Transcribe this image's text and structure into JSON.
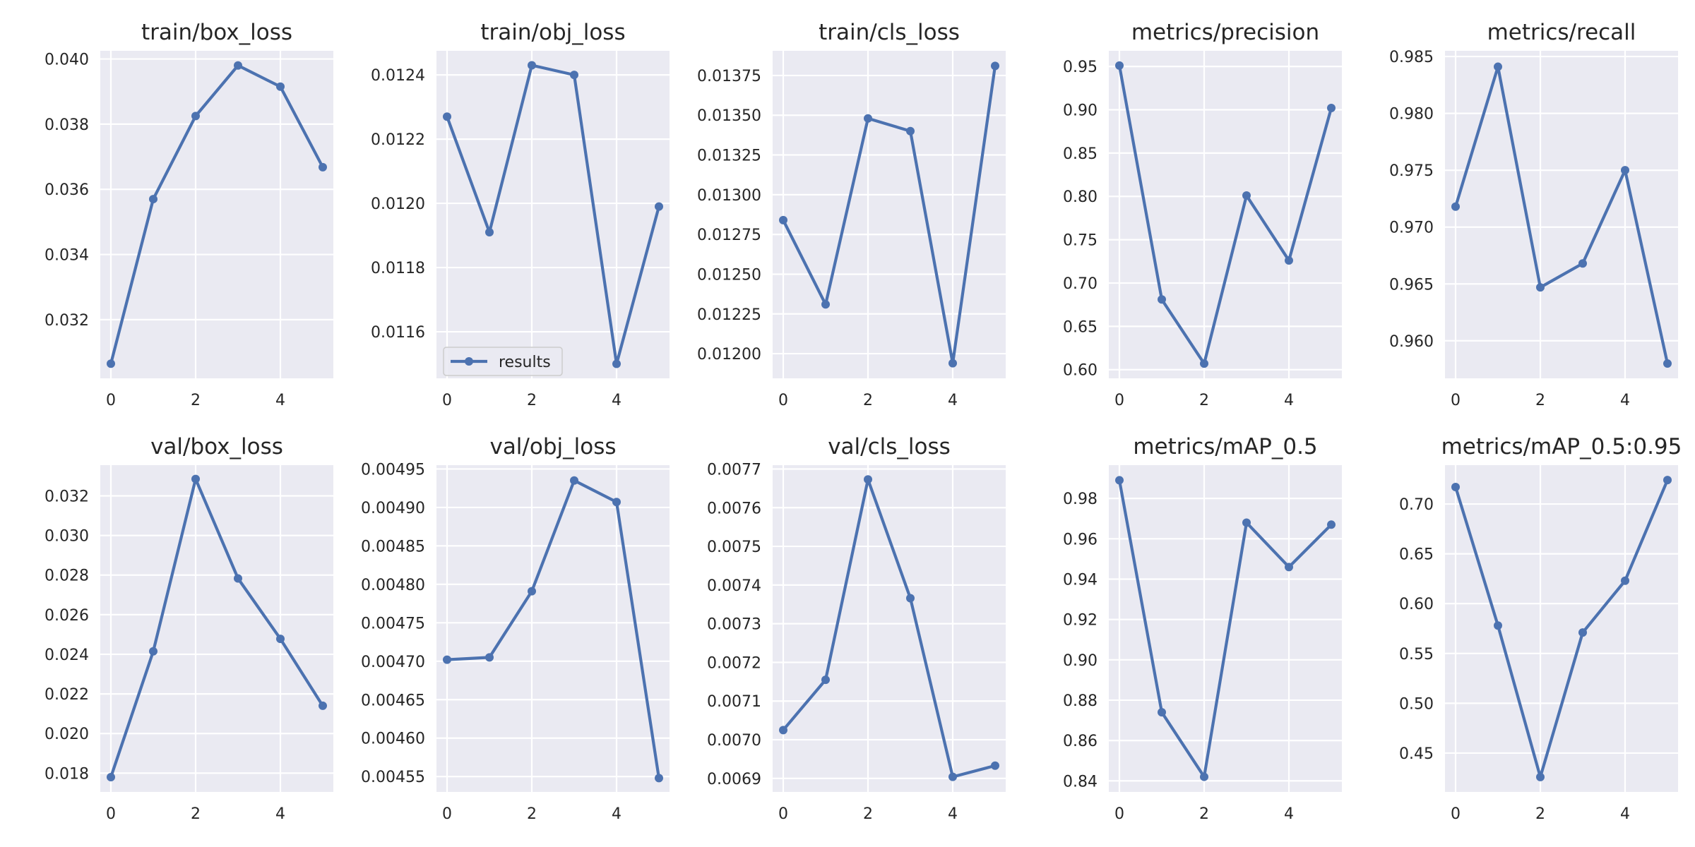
{
  "figure": {
    "background": "#ffffff",
    "plot_background": "#eaeaf2",
    "grid_color": "#ffffff",
    "line_color": "#4c72b0",
    "text_color": "#262626",
    "legend": {
      "label": "results",
      "panel": 1,
      "placement": "lower-left"
    }
  },
  "chart_data": [
    {
      "type": "line",
      "title": "train/box_loss",
      "grid": true,
      "x": [
        0,
        1,
        2,
        3,
        4,
        5
      ],
      "series": [
        {
          "values": [
            0.03065,
            0.0357,
            0.03825,
            0.0398,
            0.03915,
            0.03668
          ]
        }
      ],
      "xticks": [
        0,
        2,
        4
      ],
      "yticks": [
        0.032,
        0.034,
        0.036,
        0.038,
        0.04
      ],
      "ytick_labels": [
        "0.032",
        "0.034",
        "0.036",
        "0.038",
        "0.040"
      ],
      "xlim": [
        -0.25,
        5.25
      ],
      "ylim": [
        0.0302,
        0.04025
      ]
    },
    {
      "type": "line",
      "title": "train/obj_loss",
      "grid": true,
      "x": [
        0,
        1,
        2,
        3,
        4,
        5
      ],
      "series": [
        {
          "values": [
            0.01227,
            0.01191,
            0.01243,
            0.0124,
            0.0115,
            0.01199
          ]
        }
      ],
      "xticks": [
        0,
        2,
        4
      ],
      "yticks": [
        0.0116,
        0.0118,
        0.012,
        0.0122,
        0.0124
      ],
      "ytick_labels": [
        "0.0116",
        "0.0118",
        "0.0120",
        "0.0122",
        "0.0124"
      ],
      "xlim": [
        -0.25,
        5.25
      ],
      "ylim": [
        0.011455,
        0.012475
      ]
    },
    {
      "type": "line",
      "title": "train/cls_loss",
      "grid": true,
      "x": [
        0,
        1,
        2,
        3,
        4,
        5
      ],
      "series": [
        {
          "values": [
            0.01284,
            0.01231,
            0.01348,
            0.0134,
            0.01194,
            0.01381
          ]
        }
      ],
      "xticks": [
        0,
        2,
        4
      ],
      "yticks": [
        0.012,
        0.01225,
        0.0125,
        0.01275,
        0.013,
        0.01325,
        0.0135,
        0.01375
      ],
      "ytick_labels": [
        "0.01200",
        "0.01225",
        "0.01250",
        "0.01275",
        "0.01300",
        "0.01325",
        "0.01350",
        "0.01375"
      ],
      "xlim": [
        -0.25,
        5.25
      ],
      "ylim": [
        0.011845,
        0.013905
      ]
    },
    {
      "type": "line",
      "title": "metrics/precision",
      "grid": true,
      "x": [
        0,
        1,
        2,
        3,
        4,
        5
      ],
      "series": [
        {
          "values": [
            0.951,
            0.681,
            0.607,
            0.801,
            0.726,
            0.902
          ]
        }
      ],
      "xticks": [
        0,
        2,
        4
      ],
      "yticks": [
        0.6,
        0.65,
        0.7,
        0.75,
        0.8,
        0.85,
        0.9,
        0.95
      ],
      "ytick_labels": [
        "0.60",
        "0.65",
        "0.70",
        "0.75",
        "0.80",
        "0.85",
        "0.90",
        "0.95"
      ],
      "xlim": [
        -0.25,
        5.25
      ],
      "ylim": [
        0.59,
        0.968
      ]
    },
    {
      "type": "line",
      "title": "metrics/recall",
      "grid": true,
      "x": [
        0,
        1,
        2,
        3,
        4,
        5
      ],
      "series": [
        {
          "values": [
            0.9718,
            0.9841,
            0.9647,
            0.9668,
            0.975,
            0.958
          ]
        }
      ],
      "xticks": [
        0,
        2,
        4
      ],
      "yticks": [
        0.96,
        0.965,
        0.97,
        0.975,
        0.98,
        0.985
      ],
      "ytick_labels": [
        "0.960",
        "0.965",
        "0.970",
        "0.975",
        "0.980",
        "0.985"
      ],
      "xlim": [
        -0.25,
        5.25
      ],
      "ylim": [
        0.9567,
        0.9855
      ]
    },
    {
      "type": "line",
      "title": "val/box_loss",
      "grid": true,
      "x": [
        0,
        1,
        2,
        3,
        4,
        5
      ],
      "series": [
        {
          "values": [
            0.0178,
            0.02415,
            0.03285,
            0.02783,
            0.02478,
            0.0214
          ]
        }
      ],
      "xticks": [
        0,
        2,
        4
      ],
      "yticks": [
        0.018,
        0.02,
        0.022,
        0.024,
        0.026,
        0.028,
        0.03,
        0.032
      ],
      "ytick_labels": [
        "0.018",
        "0.020",
        "0.022",
        "0.024",
        "0.026",
        "0.028",
        "0.030",
        "0.032"
      ],
      "xlim": [
        -0.25,
        5.25
      ],
      "ylim": [
        0.01705,
        0.03355
      ]
    },
    {
      "type": "line",
      "title": "val/obj_loss",
      "grid": true,
      "x": [
        0,
        1,
        2,
        3,
        4,
        5
      ],
      "series": [
        {
          "values": [
            0.004702,
            0.004705,
            0.004791,
            0.004935,
            0.004907,
            0.004548
          ]
        }
      ],
      "xticks": [
        0,
        2,
        4
      ],
      "yticks": [
        0.00455,
        0.0046,
        0.00465,
        0.0047,
        0.00475,
        0.0048,
        0.00485,
        0.0049,
        0.00495
      ],
      "ytick_labels": [
        "0.00455",
        "0.00460",
        "0.00465",
        "0.00470",
        "0.00475",
        "0.00480",
        "0.00485",
        "0.00490",
        "0.00495"
      ],
      "xlim": [
        -0.25,
        5.25
      ],
      "ylim": [
        0.00453,
        0.004955
      ]
    },
    {
      "type": "line",
      "title": "val/cls_loss",
      "grid": true,
      "x": [
        0,
        1,
        2,
        3,
        4,
        5
      ],
      "series": [
        {
          "values": [
            0.007025,
            0.007155,
            0.007673,
            0.007366,
            0.006904,
            0.006933
          ]
        }
      ],
      "xticks": [
        0,
        2,
        4
      ],
      "yticks": [
        0.0069,
        0.007,
        0.0071,
        0.0072,
        0.0073,
        0.0074,
        0.0075,
        0.0076,
        0.0077
      ],
      "ytick_labels": [
        "0.0069",
        "0.0070",
        "0.0071",
        "0.0072",
        "0.0073",
        "0.0074",
        "0.0075",
        "0.0076",
        "0.0077"
      ],
      "xlim": [
        -0.25,
        5.25
      ],
      "ylim": [
        0.006865,
        0.00771
      ]
    },
    {
      "type": "line",
      "title": "metrics/mAP_0.5",
      "grid": true,
      "x": [
        0,
        1,
        2,
        3,
        4,
        5
      ],
      "series": [
        {
          "values": [
            0.989,
            0.874,
            0.842,
            0.968,
            0.946,
            0.967
          ]
        }
      ],
      "xticks": [
        0,
        2,
        4
      ],
      "yticks": [
        0.84,
        0.86,
        0.88,
        0.9,
        0.92,
        0.94,
        0.96,
        0.98
      ],
      "ytick_labels": [
        "0.84",
        "0.86",
        "0.88",
        "0.90",
        "0.92",
        "0.94",
        "0.96",
        "0.98"
      ],
      "xlim": [
        -0.25,
        5.25
      ],
      "ylim": [
        0.8345,
        0.9965
      ]
    },
    {
      "type": "line",
      "title": "metrics/mAP_0.5:0.95",
      "grid": true,
      "x": [
        0,
        1,
        2,
        3,
        4,
        5
      ],
      "series": [
        {
          "values": [
            0.717,
            0.578,
            0.426,
            0.571,
            0.623,
            0.724
          ]
        }
      ],
      "xticks": [
        0,
        2,
        4
      ],
      "yticks": [
        0.45,
        0.5,
        0.55,
        0.6,
        0.65,
        0.7
      ],
      "ytick_labels": [
        "0.45",
        "0.50",
        "0.55",
        "0.60",
        "0.65",
        "0.70"
      ],
      "xlim": [
        -0.25,
        5.25
      ],
      "ylim": [
        0.411,
        0.739
      ]
    }
  ]
}
